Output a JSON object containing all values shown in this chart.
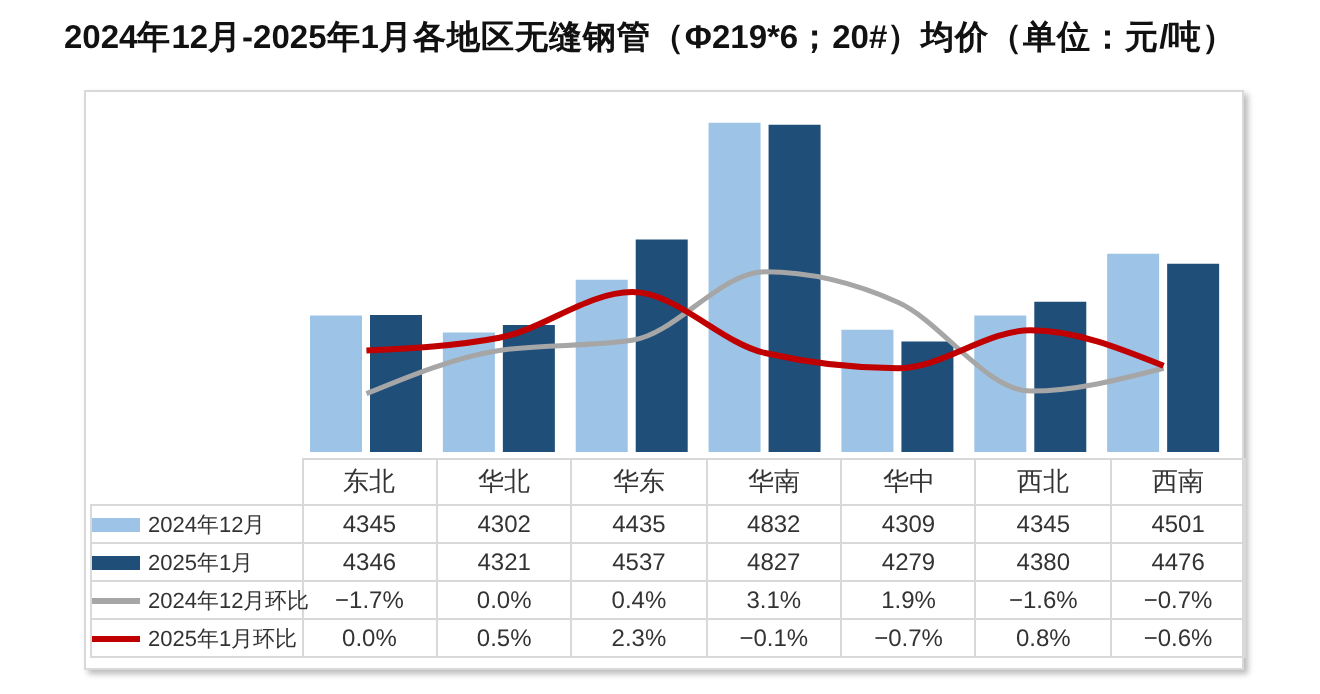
{
  "chart_data": {
    "type": "bar",
    "title": "2024年12月-2025年1月各地区无缝钢管（Φ219*6；20#）均价（单位：元/吨）",
    "categories": [
      "东北",
      "华北",
      "华东",
      "华南",
      "华中",
      "西北",
      "西南"
    ],
    "series": [
      {
        "name": "2024年12月",
        "color": "#9dc3e6",
        "values": [
          4345,
          4302,
          4435,
          4832,
          4309,
          4345,
          4501
        ],
        "value_labels": [
          "4345",
          "4302",
          "4435",
          "4832",
          "4309",
          "4345",
          "4501"
        ]
      },
      {
        "name": "2025年1月",
        "color": "#1f4e79",
        "values": [
          4346,
          4321,
          4537,
          4827,
          4279,
          4380,
          4476
        ],
        "value_labels": [
          "4346",
          "4321",
          "4537",
          "4827",
          "4279",
          "4380",
          "4476"
        ]
      },
      {
        "name": "2024年12月环比",
        "type": "line",
        "axis": "y2",
        "color": "#a6a6a6",
        "values": [
          -1.7,
          0.0,
          0.4,
          3.1,
          1.9,
          -1.6,
          -0.7
        ],
        "value_labels": [
          "−1.7%",
          "0.0%",
          "0.4%",
          "3.1%",
          "1.9%",
          "−1.6%",
          "−0.7%"
        ]
      },
      {
        "name": "2025年1月环比",
        "type": "line",
        "axis": "y2",
        "color": "#c00000",
        "values": [
          0.0,
          0.5,
          2.3,
          -0.1,
          -0.7,
          0.8,
          -0.6
        ],
        "value_labels": [
          "0.0%",
          "0.5%",
          "2.3%",
          "−0.1%",
          "−0.7%",
          "0.8%",
          "−0.6%"
        ]
      }
    ],
    "ylim": [
      4000,
      4930
    ],
    "y2lim": [
      -4,
      10.5
    ],
    "legend": "bottom",
    "grid": false,
    "marker": "none",
    "line_style": "solid",
    "tick_labels": false
  }
}
